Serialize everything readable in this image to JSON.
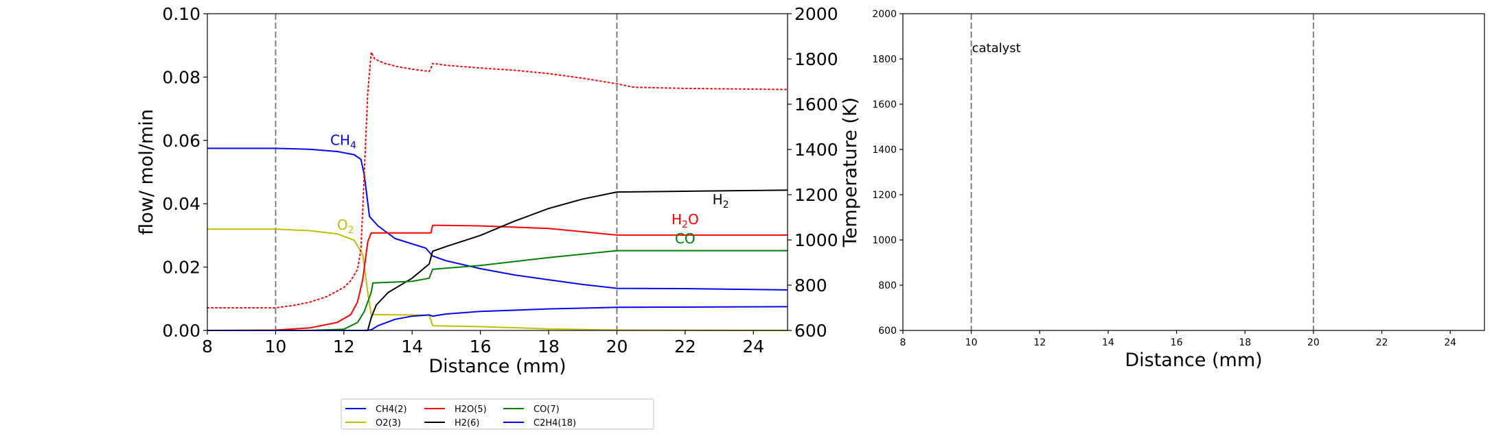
{
  "chart_data": [
    {
      "type": "line",
      "xlabel": "Distance (mm)",
      "ylabel": "flow/ mol/min",
      "y2label": "Temperature (K)",
      "xlim": [
        8,
        25
      ],
      "ylim": [
        0,
        0.1
      ],
      "y2lim": [
        600,
        2000
      ],
      "xticks": [
        "8",
        "10",
        "12",
        "14",
        "16",
        "18",
        "20",
        "22",
        "24"
      ],
      "yticks": [
        "0.00",
        "0.02",
        "0.04",
        "0.06",
        "0.08",
        "0.10"
      ],
      "y2ticks": [
        "600",
        "800",
        "1000",
        "1200",
        "1400",
        "1600",
        "1800",
        "2000"
      ],
      "vlines": [
        10,
        20
      ],
      "series": [
        {
          "name": "CH4(2)",
          "color": "#0000ff",
          "style": "solid",
          "x": [
            8,
            10,
            11,
            11.8,
            12.3,
            12.5,
            12.6,
            12.75,
            13,
            13.5,
            14.4,
            14.6,
            15,
            16,
            17,
            18,
            19,
            20,
            22,
            25
          ],
          "values": [
            0.0575,
            0.0575,
            0.0572,
            0.0565,
            0.0555,
            0.054,
            0.049,
            0.036,
            0.033,
            0.029,
            0.026,
            0.0235,
            0.022,
            0.0195,
            0.0175,
            0.016,
            0.0145,
            0.0133,
            0.0132,
            0.0128
          ]
        },
        {
          "name": "O2(3)",
          "color": "#bfbf00",
          "style": "solid",
          "x": [
            8,
            10,
            11,
            11.8,
            12.3,
            12.55,
            12.7,
            12.8,
            14.5,
            14.6,
            16,
            18,
            20,
            25
          ],
          "values": [
            0.032,
            0.032,
            0.0315,
            0.0305,
            0.0285,
            0.024,
            0.012,
            0.005,
            0.0048,
            0.0015,
            0.0012,
            0.0005,
            0.0001,
            0.0
          ]
        },
        {
          "name": "H2O(5)",
          "color": "#ff0000",
          "style": "solid",
          "x": [
            8,
            10,
            11,
            11.8,
            12.2,
            12.4,
            12.55,
            12.7,
            12.8,
            14.55,
            14.6,
            16,
            18,
            20,
            25
          ],
          "values": [
            0.0,
            0.0001,
            0.0008,
            0.0025,
            0.005,
            0.009,
            0.016,
            0.028,
            0.0308,
            0.0308,
            0.0332,
            0.033,
            0.0322,
            0.0301,
            0.0301
          ]
        },
        {
          "name": "H2(6)",
          "color": "#000000",
          "style": "solid",
          "x": [
            8,
            12.7,
            12.8,
            12.95,
            13.3,
            14,
            14.5,
            14.6,
            15,
            16,
            17,
            18,
            19,
            20,
            25
          ],
          "values": [
            0.0,
            0.0,
            0.004,
            0.008,
            0.012,
            0.0165,
            0.021,
            0.025,
            0.0265,
            0.03,
            0.0345,
            0.0385,
            0.0415,
            0.0437,
            0.0443
          ]
        },
        {
          "name": "CO(7)",
          "color": "#008000",
          "style": "solid",
          "x": [
            8,
            11,
            12,
            12.4,
            12.6,
            12.8,
            12.85,
            14,
            14.5,
            14.6,
            16,
            18,
            20,
            25
          ],
          "values": [
            0.0,
            0.0,
            0.0004,
            0.0025,
            0.006,
            0.012,
            0.015,
            0.0155,
            0.0165,
            0.0193,
            0.0205,
            0.023,
            0.0252,
            0.0252
          ]
        },
        {
          "name": "C2H4(18)",
          "color": "#0000ff",
          "style": "solid",
          "x": [
            8,
            12.6,
            12.8,
            13,
            13.5,
            14,
            14.5,
            14.6,
            15,
            16,
            18,
            20,
            25
          ],
          "values": [
            0.0,
            0.0,
            0.0002,
            0.0015,
            0.0035,
            0.0045,
            0.0049,
            0.0045,
            0.0052,
            0.006,
            0.0068,
            0.0073,
            0.0075
          ]
        },
        {
          "name": "",
          "color": "#ff0000",
          "style": "dotted",
          "axis": "y2",
          "x": [
            8,
            10,
            10.5,
            11,
            11.5,
            12,
            12.2,
            12.4,
            12.5,
            12.6,
            12.7,
            12.8,
            12.9,
            13.2,
            13.6,
            14.0,
            14.5,
            14.55,
            14.6,
            15,
            16,
            17,
            18,
            19,
            20,
            20.5,
            22,
            25
          ],
          "values": [
            700,
            700,
            710,
            725,
            750,
            790,
            820,
            870,
            960,
            1300,
            1650,
            1830,
            1800,
            1780,
            1765,
            1755,
            1745,
            1760,
            1780,
            1772,
            1760,
            1750,
            1735,
            1715,
            1690,
            1675,
            1670,
            1665
          ]
        }
      ],
      "annotations": [
        {
          "label": "CH",
          "sub": "4",
          "x": 11.6,
          "y": 0.0585,
          "color": "#0000ff"
        },
        {
          "label": "O",
          "sub": "2",
          "x": 11.8,
          "y": 0.0318,
          "color": "#bfbf00"
        },
        {
          "label": "H",
          "sub": "2",
          "x": 22.8,
          "y": 0.0398,
          "color": "#000000"
        },
        {
          "label": "H",
          "sub": "2",
          "suffix": "O",
          "x": 21.6,
          "y": 0.0335,
          "color": "#ff0000"
        },
        {
          "label": "CO",
          "x": 21.7,
          "y": 0.0275,
          "color": "#008000"
        }
      ],
      "legend": {
        "placement": "below",
        "ncol": 4,
        "entries": [
          "CH4(2)",
          "O2(3)",
          "H2O(5)",
          "H2(6)",
          "CO(7)",
          "C2H4(18)"
        ]
      }
    },
    {
      "type": "line",
      "xlabel": "Distance (mm)",
      "ylabel": "",
      "xlim": [
        8,
        25
      ],
      "ylim": [
        600,
        2000
      ],
      "xticks": [
        "8",
        "10",
        "12",
        "14",
        "16",
        "18",
        "20",
        "22",
        "24"
      ],
      "yticks": [
        "600",
        "800",
        "1000",
        "1200",
        "1400",
        "1600",
        "1800",
        "2000"
      ],
      "vlines": [
        10,
        20
      ],
      "series": [],
      "annotations": [
        {
          "label": "catalyst",
          "x": 10,
          "y": 1830,
          "color": "#000000"
        }
      ]
    }
  ]
}
